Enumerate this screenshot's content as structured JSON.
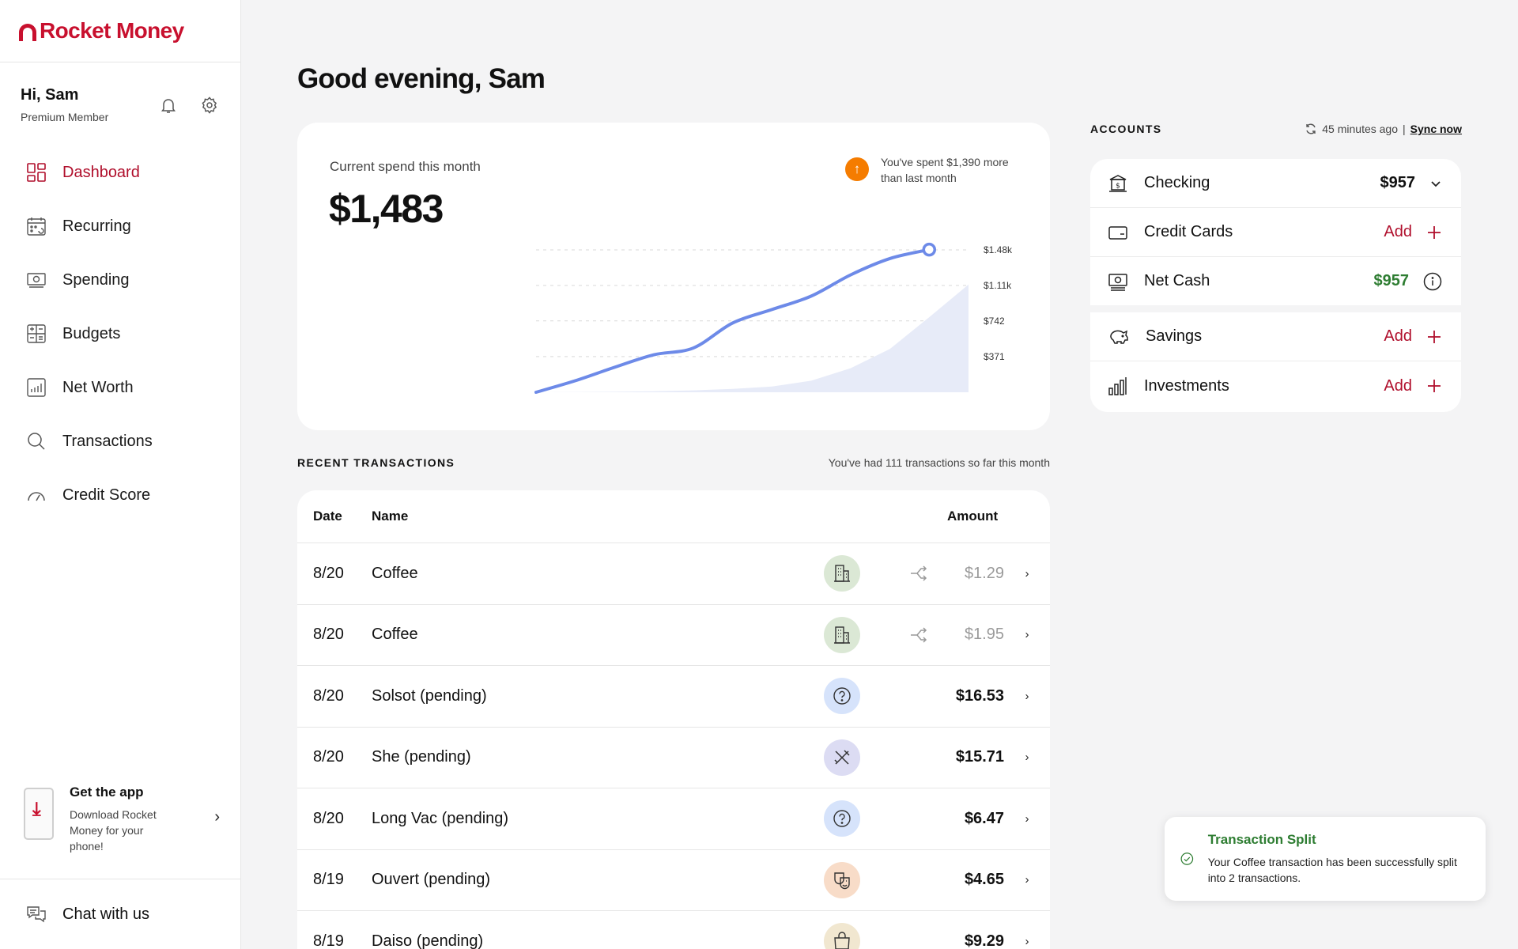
{
  "brand": {
    "name": "Rocket Money",
    "color": "#c8102e"
  },
  "user": {
    "greeting": "Hi, Sam",
    "tier": "Premium Member"
  },
  "nav": [
    {
      "label": "Dashboard",
      "icon": "dashboard-icon",
      "active": true
    },
    {
      "label": "Recurring",
      "icon": "calendar-icon"
    },
    {
      "label": "Spending",
      "icon": "money-icon"
    },
    {
      "label": "Budgets",
      "icon": "budget-icon"
    },
    {
      "label": "Net Worth",
      "icon": "bar-chart-icon"
    },
    {
      "label": "Transactions",
      "icon": "search-icon"
    },
    {
      "label": "Credit Score",
      "icon": "gauge-icon"
    }
  ],
  "app_promo": {
    "title": "Get the app",
    "subtitle": "Download Rocket Money for your phone!"
  },
  "chat": {
    "label": "Chat with us"
  },
  "main": {
    "greeting": "Good evening, Sam"
  },
  "spend": {
    "label": "Current spend this month",
    "value": "$1,483",
    "note": "You've spent $1,390 more than last month"
  },
  "chart_data": {
    "type": "line",
    "y_ticks": [
      "$1.48k",
      "$1.11k",
      "$742",
      "$371"
    ],
    "current_month": [
      0,
      120,
      260,
      390,
      460,
      720,
      860,
      1000,
      1220,
      1390,
      1483
    ],
    "last_month": [
      0,
      2,
      5,
      10,
      20,
      35,
      60,
      120,
      250,
      450,
      780,
      1120
    ],
    "colors": {
      "current": "#6d8ae8",
      "last": "#e7ebf8"
    }
  },
  "recent": {
    "title": "RECENT TRANSACTIONS",
    "count_text": "You've had 111 transactions so far this month",
    "headers": {
      "date": "Date",
      "name": "Name",
      "amount": "Amount"
    },
    "rows": [
      {
        "date": "8/20",
        "name": "Coffee",
        "amount": "$1.29",
        "icon": "building-icon",
        "bg": "#dbe8d5",
        "split": true
      },
      {
        "date": "8/20",
        "name": "Coffee",
        "amount": "$1.95",
        "icon": "building-icon",
        "bg": "#dbe8d5",
        "split": true
      },
      {
        "date": "8/20",
        "name": "Solsot (pending)",
        "amount": "$16.53",
        "icon": "question-icon",
        "bg": "#d6e3fb",
        "split": false
      },
      {
        "date": "8/20",
        "name": "She (pending)",
        "amount": "$15.71",
        "icon": "utensils-icon",
        "bg": "#dcdcf3",
        "split": false
      },
      {
        "date": "8/20",
        "name": "Long Vac (pending)",
        "amount": "$6.47",
        "icon": "question-icon",
        "bg": "#d6e3fb",
        "split": false
      },
      {
        "date": "8/19",
        "name": "Ouvert (pending)",
        "amount": "$4.65",
        "icon": "theater-icon",
        "bg": "#f8dcc8",
        "split": false
      },
      {
        "date": "8/19",
        "name": "Daiso (pending)",
        "amount": "$9.29",
        "icon": "bag-icon",
        "bg": "#f1e7d0",
        "split": false
      }
    ]
  },
  "accounts": {
    "title": "ACCOUNTS",
    "sync_time": "45 minutes ago",
    "sync_sep": "|",
    "sync_label": "Sync now",
    "items": [
      {
        "name": "Checking",
        "value": "$957",
        "icon": "bank-icon",
        "action": "chevron"
      },
      {
        "name": "Credit Cards",
        "add": "Add",
        "icon": "card-icon",
        "action": "plus"
      },
      {
        "name": "Net Cash",
        "value": "$957",
        "icon": "cash-icon",
        "action": "info"
      },
      {
        "name": "Savings",
        "add": "Add",
        "icon": "piggy-bank-icon",
        "action": "plus"
      },
      {
        "name": "Investments",
        "add": "Add",
        "icon": "bar-chart-icon",
        "action": "plus"
      }
    ]
  },
  "toast": {
    "title": "Transaction Split",
    "message": "Your Coffee transaction has been successfully split into 2 transactions."
  }
}
